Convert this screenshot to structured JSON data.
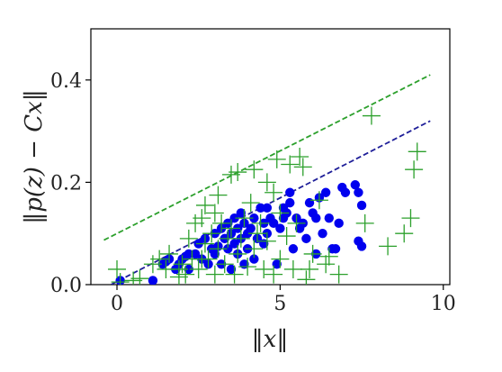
{
  "chart_data": {
    "type": "scatter",
    "xlabel": "‖x‖",
    "ylabel": "‖p(z) − Cx‖",
    "xlim": [
      -0.8,
      10.2
    ],
    "ylim": [
      0.0,
      0.5
    ],
    "xticks": [
      0,
      5,
      10
    ],
    "yticks": [
      0.0,
      0.2,
      0.4
    ],
    "xtick_labels": [
      "0",
      "5",
      "10"
    ],
    "ytick_labels": [
      "0.0",
      "0.2",
      "0.4"
    ],
    "grid": false,
    "legend": "none",
    "lines": [
      {
        "style": "dashed",
        "color": "#2ca02c",
        "x": [
          -0.4,
          9.6
        ],
        "y": [
          0.087,
          0.41
        ]
      },
      {
        "style": "dashed",
        "color": "#1f1f99",
        "x": [
          -0.4,
          9.6
        ],
        "y": [
          -0.007,
          0.32
        ]
      }
    ],
    "series": [
      {
        "marker": "circle",
        "color": "#0000ee",
        "points": [
          [
            0.1,
            0.008
          ],
          [
            1.1,
            0.008
          ],
          [
            1.4,
            0.04
          ],
          [
            1.5,
            0.045
          ],
          [
            1.6,
            0.05
          ],
          [
            1.8,
            0.03
          ],
          [
            1.9,
            0.04
          ],
          [
            2.0,
            0.05
          ],
          [
            2.1,
            0.055
          ],
          [
            2.2,
            0.03
          ],
          [
            2.2,
            0.06
          ],
          [
            2.4,
            0.06
          ],
          [
            2.5,
            0.08
          ],
          [
            2.6,
            0.05
          ],
          [
            2.7,
            0.09
          ],
          [
            2.8,
            0.04
          ],
          [
            2.9,
            0.07
          ],
          [
            3.0,
            0.1
          ],
          [
            3.0,
            0.06
          ],
          [
            3.1,
            0.075
          ],
          [
            3.2,
            0.11
          ],
          [
            3.2,
            0.04
          ],
          [
            3.3,
            0.09
          ],
          [
            3.4,
            0.12
          ],
          [
            3.4,
            0.07
          ],
          [
            3.5,
            0.1
          ],
          [
            3.5,
            0.03
          ],
          [
            3.6,
            0.08
          ],
          [
            3.6,
            0.13
          ],
          [
            3.7,
            0.11
          ],
          [
            3.7,
            0.06
          ],
          [
            3.8,
            0.14
          ],
          [
            3.8,
            0.09
          ],
          [
            3.9,
            0.12
          ],
          [
            3.9,
            0.04
          ],
          [
            4.0,
            0.1
          ],
          [
            4.0,
            0.07
          ],
          [
            4.1,
            0.11
          ],
          [
            4.2,
            0.13
          ],
          [
            4.2,
            0.05
          ],
          [
            4.3,
            0.09
          ],
          [
            4.4,
            0.15
          ],
          [
            4.5,
            0.12
          ],
          [
            4.5,
            0.08
          ],
          [
            4.6,
            0.1
          ],
          [
            4.7,
            0.13
          ],
          [
            4.8,
            0.12
          ],
          [
            4.9,
            0.04
          ],
          [
            5.0,
            0.11
          ],
          [
            5.1,
            0.15
          ],
          [
            5.2,
            0.14
          ],
          [
            5.3,
            0.18
          ],
          [
            5.3,
            0.16
          ],
          [
            5.4,
            0.07
          ],
          [
            5.5,
            0.13
          ],
          [
            5.6,
            0.11
          ],
          [
            5.7,
            0.12
          ],
          [
            5.8,
            0.09
          ],
          [
            5.9,
            0.16
          ],
          [
            6.0,
            0.14
          ],
          [
            6.1,
            0.13
          ],
          [
            6.2,
            0.17
          ],
          [
            6.3,
            0.1
          ],
          [
            6.4,
            0.18
          ],
          [
            6.5,
            0.13
          ],
          [
            6.6,
            0.07
          ],
          [
            6.7,
            0.07
          ],
          [
            6.8,
            0.12
          ],
          [
            6.9,
            0.19
          ],
          [
            7.0,
            0.18
          ],
          [
            7.3,
            0.195
          ],
          [
            7.4,
            0.18
          ],
          [
            7.4,
            0.085
          ],
          [
            7.5,
            0.075
          ],
          [
            7.5,
            0.155
          ],
          [
            6.1,
            0.06
          ],
          [
            5.1,
            0.13
          ],
          [
            4.6,
            0.15
          ]
        ]
      },
      {
        "marker": "plus",
        "color": "#2ca02c",
        "points": [
          [
            0.0,
            0.03
          ],
          [
            0.1,
            0.005
          ],
          [
            0.5,
            0.008
          ],
          [
            0.7,
            0.012
          ],
          [
            1.1,
            0.04
          ],
          [
            1.3,
            0.05
          ],
          [
            1.5,
            0.03
          ],
          [
            1.6,
            0.06
          ],
          [
            1.9,
            0.015
          ],
          [
            2.0,
            0.04
          ],
          [
            2.1,
            0.02
          ],
          [
            2.2,
            0.09
          ],
          [
            2.3,
            0.05
          ],
          [
            2.4,
            0.12
          ],
          [
            2.5,
            0.03
          ],
          [
            2.6,
            0.13
          ],
          [
            2.7,
            0.08
          ],
          [
            2.7,
            0.155
          ],
          [
            2.8,
            0.05
          ],
          [
            2.9,
            0.1
          ],
          [
            3.0,
            0.14
          ],
          [
            3.0,
            0.02
          ],
          [
            3.1,
            0.07
          ],
          [
            3.2,
            0.12
          ],
          [
            3.3,
            0.04
          ],
          [
            3.4,
            0.09
          ],
          [
            3.5,
            0.11
          ],
          [
            3.5,
            0.215
          ],
          [
            3.6,
            0.02
          ],
          [
            3.7,
            0.22
          ],
          [
            3.7,
            0.06
          ],
          [
            3.8,
            0.09
          ],
          [
            3.9,
            0.13
          ],
          [
            4.0,
            0.035
          ],
          [
            4.1,
            0.16
          ],
          [
            4.2,
            0.07
          ],
          [
            4.2,
            0.225
          ],
          [
            4.3,
            0.1
          ],
          [
            4.4,
            0.12
          ],
          [
            4.5,
            0.03
          ],
          [
            4.6,
            0.085
          ],
          [
            4.8,
            0.02
          ],
          [
            4.8,
            0.18
          ],
          [
            4.9,
            0.245
          ],
          [
            5.0,
            0.05
          ],
          [
            5.0,
            0.14
          ],
          [
            5.2,
            0.095
          ],
          [
            5.3,
            0.235
          ],
          [
            5.4,
            0.03
          ],
          [
            5.5,
            0.12
          ],
          [
            5.6,
            0.25
          ],
          [
            5.7,
            0.23
          ],
          [
            5.8,
            0.01
          ],
          [
            5.9,
            0.03
          ],
          [
            6.0,
            0.06
          ],
          [
            6.2,
            0.165
          ],
          [
            6.5,
            0.055
          ],
          [
            6.8,
            0.02
          ],
          [
            7.6,
            0.12
          ],
          [
            7.8,
            0.33
          ],
          [
            8.3,
            0.075
          ],
          [
            8.8,
            0.1
          ],
          [
            9.0,
            0.13
          ],
          [
            9.1,
            0.225
          ],
          [
            9.2,
            0.26
          ],
          [
            1.9,
            0.03
          ],
          [
            3.1,
            0.175
          ],
          [
            6.4,
            0.04
          ],
          [
            4.6,
            0.2
          ],
          [
            2.6,
            0.05
          ]
        ]
      }
    ]
  }
}
